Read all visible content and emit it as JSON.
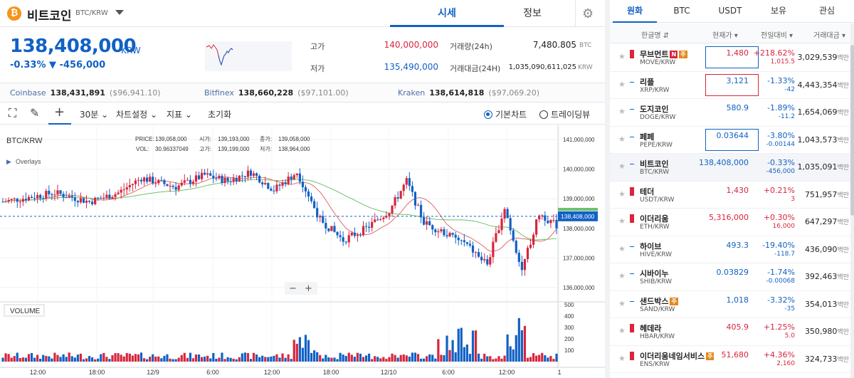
{
  "header": {
    "coin_logo": "₿",
    "coin_name": "비트코인",
    "coin_pair": "BTC/KRW",
    "tabs": [
      "시세",
      "정보"
    ],
    "active_tab": 0
  },
  "ticker": {
    "price": "138,408,000",
    "unit": "KRW",
    "change": "-0.33% ▼ -456,000",
    "high_label": "고가",
    "high": "140,000,000",
    "low_label": "저가",
    "low": "135,490,000",
    "vol_label": "거래량(24h)",
    "vol": "7,480.805",
    "vol_unit": "BTC",
    "amt_label": "거래대금(24H)",
    "amt": "1,035,090,611,025",
    "amt_unit": "KRW"
  },
  "exchanges": [
    {
      "name": "Coinbase",
      "price": "138,431,891",
      "usd": "($96,941.10)"
    },
    {
      "name": "Bitfinex",
      "price": "138,660,228",
      "usd": "($97,101.00)"
    },
    {
      "name": "Kraken",
      "price": "138,614,818",
      "usd": "($97,069.20)"
    }
  ],
  "toolbar": {
    "interval": "30분",
    "chart_settings": "차트설정",
    "indicators": "지표",
    "reset": "초기화",
    "basic_chart": "기본차트",
    "tradingview": "트레이딩뷰"
  },
  "chart_labels": {
    "pair": "BTC/KRW",
    "overlays": "Overlays",
    "volume": "VOLUME",
    "price_lbl": "PRICE:",
    "price_val": "139,058,000",
    "vol_lbl": "VOL:",
    "vol_val": "30.96337049",
    "open_lbl": "시가:",
    "open_val": "139,193,000",
    "high_lbl": "고가:",
    "high_val": "139,199,000",
    "close_lbl": "종가:",
    "close_val": "139,058,000",
    "low_lbl": "저가:",
    "low_val": "138,964,000",
    "current_tag": "138,408,000",
    "zoom_minus": "−",
    "zoom_plus": "+"
  },
  "chart_data": {
    "type": "candlestick",
    "price_ticks": [
      "141,000,000",
      "140,000,000",
      "139,000,000",
      "138,000,000",
      "137,000,000",
      "136,000,000"
    ],
    "price_tick_values": [
      141000000,
      140000000,
      139000000,
      138000000,
      137000000,
      136000000
    ],
    "volume_ticks": [
      "500",
      "400",
      "300",
      "200",
      "100"
    ],
    "volume_tick_values": [
      500,
      400,
      300,
      200,
      100
    ],
    "x_ticks": [
      "12:00",
      "18:00",
      "12/9",
      "6:00",
      "12:00",
      "18:00",
      "12/10",
      "6:00",
      "12:00",
      "1"
    ],
    "current_price": 138408000,
    "colors": {
      "up": "#d7263d",
      "down": "#1261c4",
      "ma_short": "#e06c6c",
      "ma_long": "#6fc16a"
    }
  },
  "markets": {
    "tabs": [
      "원화",
      "BTC",
      "USDT",
      "보유",
      "관심"
    ],
    "active_tab": 0,
    "headers": {
      "name": "한글명 ⇵",
      "price": "현재가 ▾",
      "change": "전일대비 ▾",
      "volume": "거래대금 ▾"
    },
    "star": "★",
    "rows": [
      {
        "name": "무브먼트",
        "badges": [
          "N",
          "주"
        ],
        "symbol": "MOVE/KRW",
        "price": "1,480",
        "change": "+218.62%",
        "amount": "1,015.5",
        "volume": "3,029,539",
        "unit": "백만",
        "dir": "up",
        "box": "blue"
      },
      {
        "name": "리플",
        "badges": [],
        "symbol": "XRP/KRW",
        "price": "3,121",
        "change": "-1.33%",
        "amount": "-42",
        "volume": "4,443,354",
        "unit": "백만",
        "dir": "down",
        "box": "red"
      },
      {
        "name": "도지코인",
        "badges": [],
        "symbol": "DOGE/KRW",
        "price": "580.9",
        "change": "-1.89%",
        "amount": "-11.2",
        "volume": "1,654,069",
        "unit": "백만",
        "dir": "down",
        "box": ""
      },
      {
        "name": "페페",
        "badges": [],
        "symbol": "PEPE/KRW",
        "price": "0.03644",
        "change": "-3.80%",
        "amount": "-0.00144",
        "volume": "1,043,573",
        "unit": "백만",
        "dir": "down",
        "box": "blue"
      },
      {
        "name": "비트코인",
        "badges": [],
        "symbol": "BTC/KRW",
        "price": "138,408,000",
        "change": "-0.33%",
        "amount": "-456,000",
        "volume": "1,035,091",
        "unit": "백만",
        "dir": "down",
        "box": "",
        "selected": true
      },
      {
        "name": "테더",
        "badges": [],
        "symbol": "USDT/KRW",
        "price": "1,430",
        "change": "+0.21%",
        "amount": "3",
        "volume": "751,957",
        "unit": "백만",
        "dir": "up",
        "box": ""
      },
      {
        "name": "이더리움",
        "badges": [],
        "symbol": "ETH/KRW",
        "price": "5,316,000",
        "change": "+0.30%",
        "amount": "16,000",
        "volume": "647,297",
        "unit": "백만",
        "dir": "up",
        "box": ""
      },
      {
        "name": "하이브",
        "badges": [],
        "symbol": "HIVE/KRW",
        "price": "493.3",
        "change": "-19.40%",
        "amount": "-118.7",
        "volume": "436,090",
        "unit": "백만",
        "dir": "down",
        "box": ""
      },
      {
        "name": "시바이누",
        "badges": [],
        "symbol": "SHIB/KRW",
        "price": "0.03829",
        "change": "-1.74%",
        "amount": "-0.00068",
        "volume": "392,463",
        "unit": "백만",
        "dir": "down",
        "box": ""
      },
      {
        "name": "샌드박스",
        "badges": [
          "주"
        ],
        "symbol": "SAND/KRW",
        "price": "1,018",
        "change": "-3.32%",
        "amount": "-35",
        "volume": "354,013",
        "unit": "백만",
        "dir": "down",
        "box": ""
      },
      {
        "name": "헤데라",
        "badges": [],
        "symbol": "HBAR/KRW",
        "price": "405.9",
        "change": "+1.25%",
        "amount": "5.0",
        "volume": "350,980",
        "unit": "백만",
        "dir": "up",
        "box": ""
      },
      {
        "name": "이더리움네임서비스",
        "badges": [
          "주"
        ],
        "symbol": "ENS/KRW",
        "price": "51,680",
        "change": "+4.36%",
        "amount": "2,160",
        "volume": "324,733",
        "unit": "백만",
        "dir": "up",
        "box": ""
      }
    ]
  }
}
